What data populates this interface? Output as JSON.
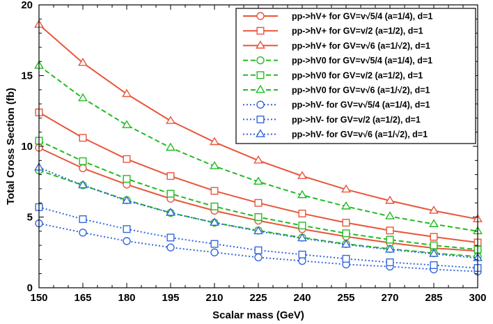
{
  "chart_data": {
    "type": "line",
    "title": "",
    "xlabel": "Scalar mass (GeV)",
    "ylabel": "Total Cross Section (fb)",
    "xlim": [
      150,
      300
    ],
    "ylim": [
      0,
      20
    ],
    "grid": false,
    "legend_position": "top-right",
    "x": [
      150,
      165,
      180,
      195,
      210,
      225,
      240,
      255,
      270,
      285,
      300
    ],
    "x_ticks": [
      "150",
      "165",
      "180",
      "195",
      "210",
      "225",
      "240",
      "255",
      "270",
      "285",
      "300"
    ],
    "y_ticks": [
      "0",
      "5",
      "10",
      "15",
      "20"
    ],
    "series": [
      {
        "name": "pp->hV+ for GV=v√5/4 (a=1/4), d=1",
        "color": "#e8553a",
        "dash": "solid",
        "marker": "circle",
        "values": [
          9.9,
          8.45,
          7.3,
          6.3,
          5.45,
          4.75,
          4.15,
          3.62,
          3.18,
          2.8,
          2.6
        ]
      },
      {
        "name": "pp->hV+ for GV=v/2 (a=1/2), d=1",
        "color": "#e8553a",
        "dash": "solid",
        "marker": "square",
        "values": [
          12.4,
          10.6,
          9.1,
          7.9,
          6.85,
          6.0,
          5.25,
          4.6,
          4.05,
          3.6,
          3.2
        ]
      },
      {
        "name": "pp->hV+ for GV=v√6 (a=1/√2), d=1",
        "color": "#e8553a",
        "dash": "solid",
        "marker": "triangle",
        "values": [
          18.6,
          15.9,
          13.7,
          11.8,
          10.3,
          9.0,
          7.9,
          6.95,
          6.15,
          5.45,
          4.85
        ]
      },
      {
        "name": "pp->hV0 for GV=v√5/4 (a=1/4), d=1",
        "color": "#22bb22",
        "dash": "dashed",
        "marker": "circle",
        "values": [
          8.3,
          7.25,
          6.2,
          5.3,
          4.6,
          4.05,
          3.55,
          3.1,
          2.75,
          2.45,
          2.2
        ]
      },
      {
        "name": "pp->hV0 for GV=v/2 (a=1/2), d=1",
        "color": "#22bb22",
        "dash": "dashed",
        "marker": "square",
        "values": [
          10.4,
          8.95,
          7.7,
          6.65,
          5.75,
          5.0,
          4.4,
          3.85,
          3.4,
          3.0,
          2.7
        ]
      },
      {
        "name": "pp->hV0 for GV=v√6 (a=1/√2), d=1",
        "color": "#22bb22",
        "dash": "dashed",
        "marker": "triangle",
        "values": [
          15.7,
          13.4,
          11.5,
          9.9,
          8.6,
          7.5,
          6.55,
          5.75,
          5.05,
          4.5,
          4.0
        ]
      },
      {
        "name": "pp->hV- for GV=v√5/4 (a=1/4), d=1",
        "color": "#3366dd",
        "dash": "dotted",
        "marker": "circle",
        "values": [
          4.55,
          3.9,
          3.3,
          2.85,
          2.5,
          2.15,
          1.9,
          1.65,
          1.5,
          1.3,
          1.15
        ]
      },
      {
        "name": "pp->hV- for GV=v/2 (a=1/2), d=1",
        "color": "#3366dd",
        "dash": "dotted",
        "marker": "square",
        "values": [
          5.7,
          4.85,
          4.15,
          3.55,
          3.1,
          2.65,
          2.35,
          2.05,
          1.8,
          1.6,
          1.4
        ]
      },
      {
        "name": "pp->hV- for GV=v√6 (a=1/√2), d=1",
        "color": "#3366dd",
        "dash": "dotted",
        "marker": "triangle",
        "values": [
          8.5,
          7.25,
          6.15,
          5.3,
          4.6,
          4.0,
          3.5,
          3.05,
          2.7,
          2.4,
          2.1
        ]
      }
    ]
  }
}
